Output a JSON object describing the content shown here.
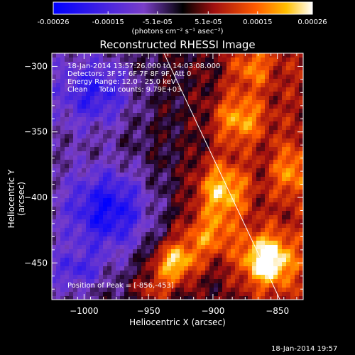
{
  "window": {
    "timestamp": "18-Jan-2014 19:57"
  },
  "colorbar": {
    "ticks": [
      "-0.00026",
      "-0.00015",
      "-5.1e-05",
      "5.1e-05",
      "0.00015",
      "0.00026"
    ],
    "tick_values": [
      -0.00026,
      -0.00015,
      -5.1e-05,
      5.1e-05,
      0.00015,
      0.00026
    ],
    "unit_label": "(photons cm⁻² s⁻¹ asec⁻²)"
  },
  "chart_data": {
    "type": "heatmap",
    "title": "Reconstructed RHESSI Image",
    "xlabel": "Heliocentric X (arcsec)",
    "ylabel": "Heliocentric Y (arcsec)",
    "xlim": [
      -1025,
      -830
    ],
    "ylim": [
      -478,
      -290
    ],
    "x_ticks": [
      -1000,
      -950,
      -900,
      -850
    ],
    "y_ticks": [
      -300,
      -350,
      -400,
      -450
    ],
    "x_tick_labels": [
      "−1000",
      "−950",
      "−900",
      "−850"
    ],
    "y_tick_labels": [
      "−300",
      "−350",
      "−400",
      "−450"
    ],
    "value_range": [
      -0.00026,
      0.00026
    ],
    "grid": false,
    "limb_line": {
      "x": [
        -938,
        -848
      ],
      "y": [
        -290,
        -478
      ]
    },
    "peak": {
      "x": -856,
      "y": -453
    },
    "bright_regions": [
      {
        "x": -858,
        "y": -448,
        "value": 0.00026,
        "sx": 14,
        "sy": 14
      },
      {
        "x": -930,
        "y": -450,
        "value": 0.00022,
        "sx": 12,
        "sy": 10
      },
      {
        "x": -893,
        "y": -395,
        "value": 0.0002,
        "sx": 14,
        "sy": 16
      },
      {
        "x": -880,
        "y": -340,
        "value": 0.00016,
        "sx": 14,
        "sy": 14
      },
      {
        "x": -905,
        "y": -430,
        "value": 0.00014,
        "sx": 16,
        "sy": 12
      },
      {
        "x": -870,
        "y": -300,
        "value": 0.00012,
        "sx": 12,
        "sy": 12
      },
      {
        "x": -840,
        "y": -380,
        "value": 0.00012,
        "sx": 10,
        "sy": 14
      },
      {
        "x": -945,
        "y": -470,
        "value": 0.0001,
        "sx": 12,
        "sy": 8
      }
    ],
    "dark_regions": [
      {
        "x": -990,
        "y": -320,
        "value": -0.00015,
        "sx": 20,
        "sy": 18
      },
      {
        "x": -980,
        "y": -410,
        "value": -0.0002,
        "sx": 22,
        "sy": 22
      },
      {
        "x": -1005,
        "y": -455,
        "value": -0.0001,
        "sx": 14,
        "sy": 10
      }
    ],
    "info": {
      "line1": "18-Jan-2014 13:57:26.000 to 14:03:08.000",
      "line2": "Detectors: 3F 5F 6F 7F 8F 9F, Att 0",
      "line3": "Energy Range: 12.0 - 25.0 keV",
      "line4": "Clean     Total counts: 9.79E+03",
      "peak_label": "Position of Peak = [-856,-453]"
    }
  }
}
